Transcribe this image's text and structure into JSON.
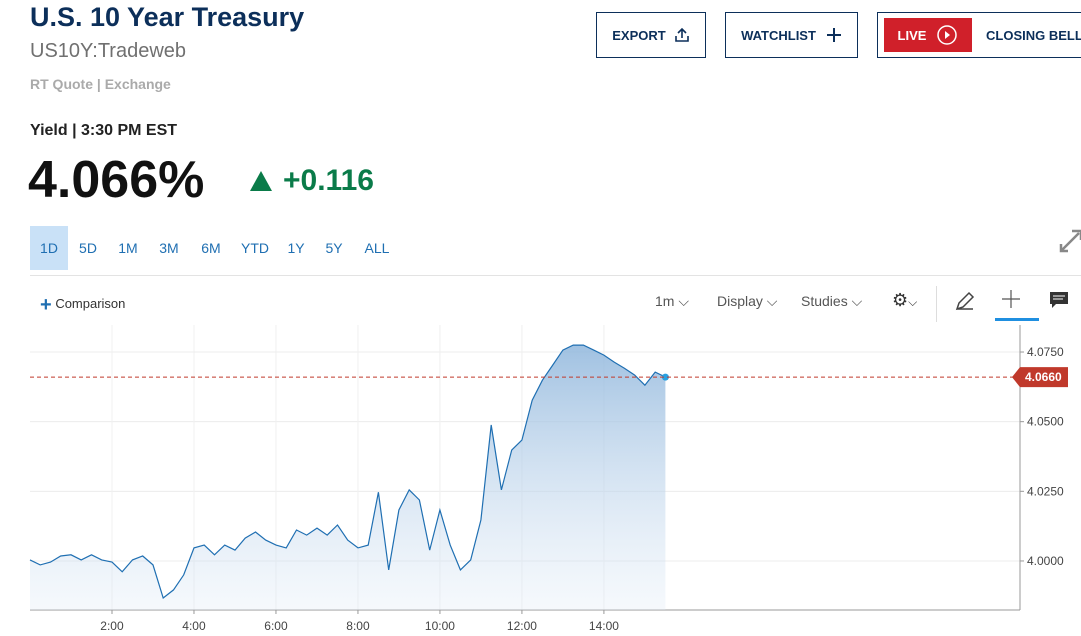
{
  "header": {
    "title": "U.S. 10 Year Treasury",
    "symbol": "US10Y:Tradeweb",
    "quote_type": "RT Quote | Exchange"
  },
  "buttons": {
    "export": "EXPORT",
    "watchlist": "WATCHLIST",
    "live": "LIVE",
    "closing_bell": "CLOSING BELL"
  },
  "quote": {
    "label": "Yield | 3:30 PM EST",
    "value": "4.066%",
    "change": "+0.116"
  },
  "ranges": [
    "1D",
    "5D",
    "1M",
    "3M",
    "6M",
    "YTD",
    "1Y",
    "5Y",
    "ALL"
  ],
  "toolbar": {
    "comparison": "Comparison",
    "interval": "1m",
    "display": "Display",
    "studies": "Studies"
  },
  "chart_data": {
    "type": "area",
    "color": "#1f6fb2",
    "x": [
      0,
      0.25,
      0.5,
      0.75,
      1,
      1.25,
      1.5,
      1.75,
      2,
      2.25,
      2.5,
      2.75,
      3,
      3.25,
      3.5,
      3.75,
      4,
      4.25,
      4.5,
      4.75,
      5,
      5.25,
      5.5,
      5.75,
      6,
      6.25,
      6.5,
      6.75,
      7,
      7.25,
      7.5,
      7.75,
      8,
      8.25,
      8.5,
      8.75,
      9,
      9.25,
      9.5,
      9.75,
      10,
      10.25,
      10.5,
      10.75,
      11,
      11.25,
      11.5,
      11.75,
      12,
      12.25,
      12.5,
      12.75,
      13,
      13.25,
      13.5,
      13.75,
      14,
      14.25,
      14.5,
      14.75,
      15,
      15.25,
      15.5
    ],
    "values": [
      4.0004,
      3.9986,
      3.9996,
      4.0018,
      4.0022,
      4.0004,
      4.0022,
      4.0004,
      3.9996,
      3.9961,
      4.0004,
      4.0018,
      3.9986,
      3.9867,
      3.9896,
      3.995,
      4.0047,
      4.0057,
      4.0022,
      4.0057,
      4.0039,
      4.0082,
      4.0104,
      4.0075,
      4.0057,
      4.0047,
      4.0111,
      4.0093,
      4.0118,
      4.0093,
      4.0129,
      4.0075,
      4.0047,
      4.0057,
      4.0247,
      3.9968,
      4.0183,
      4.0255,
      4.0219,
      4.0039,
      4.0183,
      4.0057,
      3.9968,
      4.0004,
      4.0147,
      4.0488,
      4.0255,
      4.0398,
      4.0434,
      4.0577,
      4.0649,
      4.0703,
      4.0757,
      4.0775,
      4.0775,
      4.0757,
      4.0739,
      4.0714,
      4.0692,
      4.0667,
      4.0631,
      4.0678,
      4.066
    ],
    "xlim": [
      0,
      24.15
    ],
    "xticks": [
      {
        "value": 2,
        "label": "2:00"
      },
      {
        "value": 4,
        "label": "4:00"
      },
      {
        "value": 6,
        "label": "6:00"
      },
      {
        "value": 8,
        "label": "8:00"
      },
      {
        "value": 10,
        "label": "10:00"
      },
      {
        "value": 12,
        "label": "12:00"
      },
      {
        "value": 14,
        "label": "14:00"
      }
    ],
    "ylim": [
      3.9824,
      4.0847
    ],
    "yticks": [
      {
        "value": 4,
        "label": "4.0000"
      },
      {
        "value": 4.025,
        "label": "4.0250"
      },
      {
        "value": 4.05,
        "label": "4.0500"
      },
      {
        "value": 4.075,
        "label": "4.0750"
      }
    ],
    "last": {
      "value": 4.066,
      "label": "4.0660",
      "color": "#c0392b"
    },
    "grid": true
  }
}
